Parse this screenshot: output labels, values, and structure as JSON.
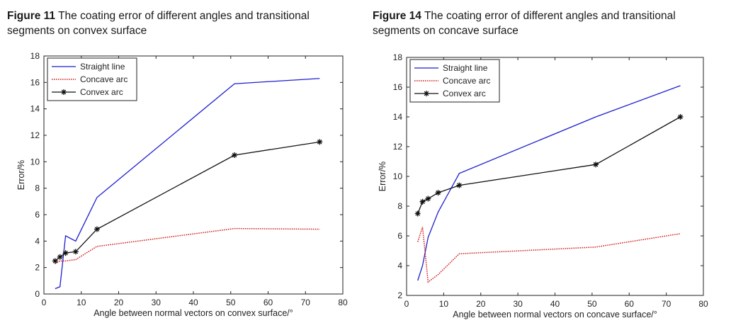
{
  "figures": [
    {
      "label": "Figure 11",
      "caption": "The coating error of different angles and transitional segments on convex surface"
    },
    {
      "label": "Figure 14",
      "caption": "The coating error of different angles and transitional segments on concave surface"
    }
  ],
  "chart_data": [
    {
      "type": "line",
      "title": "",
      "xlabel": "Angle between normal vectors on convex surface/°",
      "ylabel": "Error/%",
      "xlim": [
        0,
        80
      ],
      "ylim": [
        0,
        18
      ],
      "xticks": [
        0,
        10,
        20,
        30,
        40,
        50,
        60,
        70,
        80
      ],
      "yticks": [
        0,
        2,
        4,
        6,
        8,
        10,
        12,
        14,
        16,
        18
      ],
      "grid": false,
      "legend_position": "top-left",
      "series": [
        {
          "name": "Straight line",
          "color": "#1f1fcf",
          "style": "solid",
          "marker": "none",
          "x": [
            3,
            4.3,
            5.8,
            8.5,
            14.2,
            51,
            73.8
          ],
          "y": [
            0.4,
            0.55,
            4.4,
            4.0,
            7.3,
            15.9,
            16.3
          ]
        },
        {
          "name": "Concave arc",
          "color": "#d42020",
          "style": "dotted",
          "marker": "none",
          "x": [
            3,
            4.3,
            5.8,
            8.5,
            14.2,
            51,
            73.8
          ],
          "y": [
            2.3,
            2.5,
            2.5,
            2.6,
            3.6,
            4.95,
            4.9
          ]
        },
        {
          "name": "Convex arc",
          "color": "#111111",
          "style": "solid",
          "marker": "star",
          "x": [
            3,
            4.3,
            5.8,
            8.5,
            14.2,
            51,
            73.8
          ],
          "y": [
            2.5,
            2.8,
            3.1,
            3.2,
            4.9,
            10.5,
            11.5
          ]
        }
      ]
    },
    {
      "type": "line",
      "title": "",
      "xlabel": "Angle between normal vectors on concave surface/°",
      "ylabel": "Error/%",
      "xlim": [
        0,
        80
      ],
      "ylim": [
        2,
        18
      ],
      "xticks": [
        0,
        10,
        20,
        30,
        40,
        50,
        60,
        70,
        80
      ],
      "yticks": [
        2,
        4,
        6,
        8,
        10,
        12,
        14,
        16,
        18
      ],
      "grid": false,
      "legend_position": "top-left",
      "series": [
        {
          "name": "Straight line",
          "color": "#1f1fcf",
          "style": "solid",
          "marker": "none",
          "x": [
            3,
            4.3,
            5.8,
            8.5,
            14.2,
            51,
            73.8
          ],
          "y": [
            3.0,
            4.0,
            5.9,
            7.6,
            10.2,
            14.0,
            16.1
          ]
        },
        {
          "name": "Concave arc",
          "color": "#d42020",
          "style": "dotted",
          "marker": "none",
          "x": [
            3,
            4.3,
            5.8,
            8.5,
            14.2,
            51,
            73.8
          ],
          "y": [
            5.6,
            6.6,
            2.9,
            3.4,
            4.8,
            5.25,
            6.15
          ]
        },
        {
          "name": "Convex arc",
          "color": "#111111",
          "style": "solid",
          "marker": "star",
          "x": [
            3,
            4.3,
            5.8,
            8.5,
            14.2,
            51,
            73.8
          ],
          "y": [
            7.5,
            8.3,
            8.5,
            8.9,
            9.4,
            10.8,
            14.0
          ]
        }
      ]
    }
  ]
}
